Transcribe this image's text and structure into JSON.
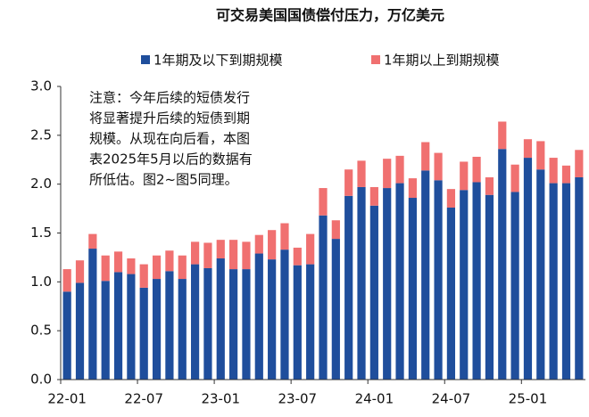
{
  "chart_data": {
    "type": "stacked_bar",
    "title": "可交易美国国债偿付压力，万亿美元",
    "annotation": [
      "注意：今年后续的短债发行",
      "将显著提升后续的短债到期",
      "规模。从现在向后看，本图",
      "表2025年5月以后的数据有",
      "所低估。图2~图5同理。"
    ],
    "categories": [
      "22-01",
      null,
      null,
      null,
      null,
      null,
      "22-07",
      null,
      null,
      null,
      null,
      null,
      "23-01",
      null,
      null,
      null,
      null,
      null,
      "23-07",
      null,
      null,
      null,
      null,
      null,
      "24-01",
      null,
      null,
      null,
      null,
      null,
      "24-07",
      null,
      null,
      null,
      null,
      null,
      "25-01",
      null,
      null,
      null,
      null
    ],
    "series": [
      {
        "name": "1年期及以下到期规模",
        "color": "#1f4e9c",
        "values": [
          0.9,
          0.99,
          1.34,
          1.01,
          1.1,
          1.08,
          0.94,
          1.03,
          1.11,
          1.03,
          1.18,
          1.14,
          1.24,
          1.13,
          1.13,
          1.29,
          1.23,
          1.33,
          1.17,
          1.18,
          1.68,
          1.44,
          1.88,
          1.97,
          1.78,
          1.96,
          2.01,
          1.86,
          2.14,
          2.04,
          1.76,
          1.94,
          2.02,
          1.89,
          2.36,
          1.92,
          2.27,
          2.15,
          2.01,
          2.01,
          2.07
        ]
      },
      {
        "name": "1年期以上到期规模",
        "color": "#f07070",
        "values": [
          0.23,
          0.23,
          0.15,
          0.26,
          0.21,
          0.16,
          0.24,
          0.24,
          0.21,
          0.24,
          0.23,
          0.26,
          0.19,
          0.3,
          0.28,
          0.19,
          0.3,
          0.27,
          0.18,
          0.31,
          0.28,
          0.19,
          0.27,
          0.27,
          0.19,
          0.3,
          0.28,
          0.2,
          0.29,
          0.28,
          0.19,
          0.29,
          0.26,
          0.18,
          0.28,
          0.28,
          0.19,
          0.29,
          0.26,
          0.18,
          0.28
        ]
      }
    ],
    "ylim": [
      0,
      3
    ],
    "yticks": [
      {
        "value": 0,
        "label": "0.0"
      },
      {
        "value": 0.5,
        "label": "0.5"
      },
      {
        "value": 1,
        "label": "1.0"
      },
      {
        "value": 1.5,
        "label": "1.5"
      },
      {
        "value": 2,
        "label": "2.0"
      },
      {
        "value": 2.5,
        "label": "2.5"
      },
      {
        "value": 3,
        "label": "3.0"
      }
    ]
  }
}
